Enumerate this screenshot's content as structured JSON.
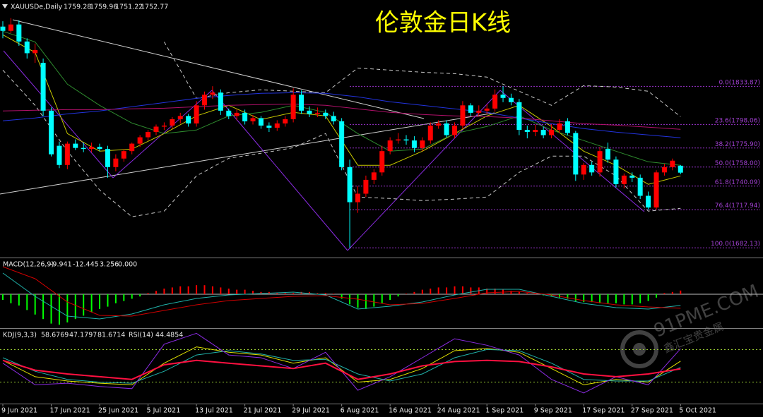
{
  "chart_data": {
    "type": "candlestick",
    "title": "伦敦金日K线",
    "symbol": "XAUUSDe,Daily",
    "categories": [
      "9 Jun 2021",
      null,
      null,
      null,
      null,
      null,
      "17 Jun 2021",
      null,
      null,
      null,
      null,
      null,
      "25 Jun 2021",
      null,
      null,
      null,
      null,
      null,
      "5 Jul 2021",
      null,
      null,
      null,
      null,
      null,
      "13 Jul 2021",
      null,
      null,
      null,
      null,
      null,
      "21 Jul 2021",
      null,
      null,
      null,
      null,
      null,
      "29 Jul 2021",
      null,
      null,
      null,
      null,
      null,
      "6 Aug 2021",
      null,
      null,
      null,
      null,
      null,
      "16 Aug 2021",
      null,
      null,
      null,
      null,
      null,
      "24 Aug 2021",
      null,
      null,
      null,
      null,
      null,
      "1 Sep 2021",
      null,
      null,
      null,
      null,
      null,
      "9 Sep 2021",
      null,
      null,
      null,
      null,
      null,
      "17 Sep 2021",
      null,
      null,
      null,
      null,
      null,
      "27 Sep 2021",
      null,
      null,
      null,
      null,
      null,
      "5 Oct 2021"
    ],
    "open": [
      1890,
      1886,
      1892,
      1876,
      1865,
      1856,
      1811,
      1778,
      1760,
      1780,
      1776,
      1775,
      1777,
      1775,
      1758,
      1766,
      1773,
      1780,
      1786,
      1791,
      1796,
      1797,
      1803,
      1806,
      1799,
      1816,
      1826,
      1828,
      1811,
      1806,
      1809,
      1801,
      1804,
      1797,
      1795,
      1799,
      1803,
      1826,
      1811,
      1808,
      1809,
      1806,
      1801,
      1758,
      1725,
      1733,
      1746,
      1753,
      1773,
      1783,
      1784,
      1783,
      1776,
      1783,
      1797,
      1799,
      1788,
      1797,
      1816,
      1809,
      1811,
      1813,
      1826,
      1823,
      1819,
      1793,
      1791,
      1793,
      1788,
      1793,
      1801,
      1790,
      1751,
      1760,
      1753,
      1775,
      1765,
      1742,
      1750,
      1748,
      1731,
      1720,
      1753,
      1758,
      1759.28
    ],
    "high": [
      1895,
      1898,
      1896,
      1879,
      1874,
      1860,
      1814,
      1782,
      1782,
      1784,
      1781,
      1781,
      1780,
      1778,
      1770,
      1775,
      1781,
      1788,
      1793,
      1798,
      1800,
      1805,
      1809,
      1808,
      1820,
      1829,
      1834,
      1831,
      1813,
      1812,
      1812,
      1807,
      1806,
      1800,
      1802,
      1806,
      1832,
      1830,
      1815,
      1814,
      1812,
      1810,
      1804,
      1765,
      1740,
      1750,
      1756,
      1778,
      1786,
      1790,
      1788,
      1787,
      1786,
      1800,
      1802,
      1802,
      1800,
      1820,
      1818,
      1816,
      1817,
      1831,
      1833.87,
      1827,
      1822,
      1797,
      1798,
      1796,
      1798,
      1803,
      1804,
      1792,
      1762,
      1763,
      1777,
      1781,
      1768,
      1752,
      1753,
      1751,
      1735,
      1755,
      1761,
      1766,
      1759.96
    ],
    "low": [
      1879,
      1884,
      1872,
      1860,
      1856,
      1806,
      1768,
      1757,
      1756,
      1774,
      1772,
      1772,
      1773,
      1748,
      1754,
      1763,
      1770,
      1777,
      1783,
      1788,
      1793,
      1794,
      1799,
      1796,
      1796,
      1812,
      1822,
      1807,
      1803,
      1802,
      1798,
      1798,
      1794,
      1791,
      1792,
      1796,
      1800,
      1808,
      1805,
      1805,
      1803,
      1798,
      1755,
      1682.13,
      1715,
      1730,
      1742,
      1750,
      1770,
      1780,
      1779,
      1772,
      1773,
      1780,
      1794,
      1786,
      1785,
      1794,
      1806,
      1806,
      1808,
      1810,
      1819,
      1816,
      1788,
      1785,
      1787,
      1785,
      1785,
      1790,
      1788,
      1745,
      1746,
      1750,
      1749,
      1762,
      1739,
      1738,
      1744,
      1728,
      1718,
      1718,
      1750,
      1755,
      1751.22
    ],
    "close": [
      1886,
      1892,
      1876,
      1865,
      1868,
      1811,
      1770,
      1760,
      1780,
      1776,
      1775,
      1777,
      1775,
      1758,
      1766,
      1773,
      1780,
      1786,
      1791,
      1796,
      1797,
      1803,
      1806,
      1799,
      1816,
      1826,
      1828,
      1811,
      1806,
      1809,
      1801,
      1804,
      1797,
      1795,
      1799,
      1803,
      1826,
      1811,
      1808,
      1809,
      1806,
      1801,
      1758,
      1725,
      1733,
      1746,
      1753,
      1773,
      1783,
      1784,
      1783,
      1776,
      1783,
      1797,
      1799,
      1788,
      1797,
      1816,
      1809,
      1811,
      1813,
      1826,
      1823,
      1819,
      1793,
      1791,
      1793,
      1788,
      1793,
      1799,
      1790,
      1751,
      1760,
      1753,
      1773,
      1765,
      1742,
      1750,
      1748,
      1731,
      1720,
      1753,
      1758,
      1764,
      1752.77
    ],
    "up_color": "#ff0000",
    "down_color": "#00ffff",
    "ylim": [
      1673,
      1915
    ],
    "fib_levels": [
      {
        "value": 1833.87,
        "label": "0.0(1833.87)"
      },
      {
        "value": 1798.06,
        "label": "23.6(1798.06)"
      },
      {
        "value": 1775.9,
        "label": "38.2(1775.90)"
      },
      {
        "value": 1758,
        "label": "50.0(1758.00)"
      },
      {
        "value": 1740.09,
        "label": "61.8(1740.09)"
      },
      {
        "value": 1717.94,
        "label": "76.4(1717.94)"
      },
      {
        "value": 1682.13,
        "label": "100.0(1682.13)"
      }
    ],
    "fib_color": "#9932cc",
    "overlays": {
      "x": [
        0,
        4,
        8,
        12,
        16,
        20,
        24,
        28,
        32,
        36,
        40,
        44,
        48,
        52,
        56,
        60,
        64,
        68,
        72,
        76,
        80,
        84
      ],
      "series": [
        {
          "color": "#c8c8c8",
          "dashed": true,
          "values": [
            null,
            null,
            null,
            null,
            null,
            1875.6,
            1822.6,
            1827.9,
            1830.6,
            1829.3,
            1827.9,
            1851.1,
            1849.1,
            1847.1,
            1845.8,
            1842.5,
            1829.3,
            1816,
            1834.5,
            1833.2,
            1829.3,
            1805.4
          ]
        },
        {
          "color": "#c8c8c8",
          "dashed": true,
          "values": [
            1849.1,
            1816,
            1772.9,
            1736.5,
            1711.3,
            1716.6,
            1749.7,
            1766.3,
            1770.9,
            1776.2,
            1789.5,
            1729.8,
            1728.5,
            1726.5,
            1727.9,
            1729.8,
            1753,
            1768.3,
            1768.3,
            1749.7,
            1716.6,
            1719.2
          ]
        },
        {
          "color": "#c8c800",
          "dashed": false,
          "values": [
            1882.3,
            1865.7,
            1789.5,
            1772.9,
            1774.9,
            1789.5,
            1806.1,
            1816,
            1802.7,
            1809.4,
            1806.1,
            1759.7,
            1759.7,
            1772.9,
            1789.5,
            1806.1,
            1816,
            1796.1,
            1772.9,
            1759.7,
            1741.8,
            1749.7
          ]
        },
        {
          "color": "#2e8b2e",
          "dashed": false,
          "values": [
            1885.6,
            1875.6,
            1835.9,
            1816,
            1799.4,
            1789.5,
            1792.8,
            1806.1,
            1809.4,
            1816,
            1809.4,
            1789.5,
            1772.9,
            1774.9,
            1789.5,
            1796.1,
            1806.1,
            1792.8,
            1782.9,
            1772.9,
            1763,
            1759.7
          ]
        },
        {
          "color": "#2233dd",
          "dashed": false,
          "values": [
            1801.4,
            1804.1,
            1808,
            1810.7,
            1814.7,
            1818.6,
            1822.6,
            1825.3,
            1827.3,
            1827.9,
            1827.3,
            1824,
            1819.3,
            1816,
            1812.7,
            1809.4,
            1804.1,
            1798.8,
            1794.1,
            1790.8,
            1788.2,
            1785.5
          ]
        },
        {
          "color": "#b0106a",
          "dashed": false,
          "values": [
            1810.7,
            1811.4,
            1812,
            1812,
            1812.7,
            1813.3,
            1814.7,
            1816,
            1816.7,
            1817.3,
            1816,
            1812.7,
            1809.4,
            1807.4,
            1806.1,
            1805.4,
            1804.1,
            1801.4,
            1798.8,
            1797.4,
            1795.5,
            1793.5
          ]
        }
      ]
    },
    "macd": {
      "title": "MACD(12,26,9)",
      "ylim": [
        -28.75,
        31.25
      ],
      "histogram": {
        "up_color": "#ff0000",
        "down_color": "#00ff00",
        "values": [
          -5,
          -8,
          -10,
          -14,
          -18,
          -22,
          -26,
          -27,
          -25,
          -22,
          -19,
          -16,
          -13,
          -11,
          -8,
          -6,
          -4,
          -2,
          1,
          3,
          5,
          6,
          7,
          7,
          8,
          8,
          7,
          6,
          5,
          4,
          4,
          3,
          2,
          2,
          1,
          1,
          1,
          2,
          2,
          1,
          1,
          0.5,
          -4,
          -9,
          -12,
          -13,
          -11,
          -8,
          -5,
          -2,
          0.5,
          2,
          4,
          5,
          6,
          6,
          7,
          7,
          6,
          6,
          5,
          5,
          4,
          3,
          2,
          1,
          0.5,
          -1,
          -2,
          -3,
          -4,
          -6,
          -7,
          -7,
          -8,
          -8,
          -8,
          -9,
          -9,
          -8,
          -6,
          -3,
          1,
          2,
          3.256
        ]
      },
      "lines": [
        {
          "color": "#20b2aa",
          "values": [
            18.75,
            -1.88,
            -19.4,
            -21.9,
            -17.5,
            -9.4,
            -3.75,
            -0.63,
            0.63,
            1.88,
            -0.63,
            -13.1,
            -10.6,
            -6.9,
            -0.63,
            4.4,
            4.4,
            -1.9,
            -8.1,
            -11.9,
            -13.1,
            -9.941
          ]
        },
        {
          "color": "#d00000",
          "values": [
            24.4,
            13.75,
            -6.9,
            -18.75,
            -19.4,
            -14.4,
            -9.4,
            -5.6,
            -3.75,
            -1.9,
            -1.25,
            -4.4,
            -9.4,
            -8.1,
            -3.75,
            1.25,
            2.5,
            -0.63,
            -5.6,
            -9.4,
            -11.25,
            -12.445
          ]
        }
      ],
      "buffer": {
        "value": 0,
        "label": "0.000"
      }
    },
    "kdj": {
      "title": "KDJ(9,3,3)",
      "ylim": [
        -17,
        117
      ],
      "levels": [
        20,
        80
      ],
      "level_color": "#9acd32",
      "lines": [
        {
          "color": "#e0e000",
          "values": [
            60,
            30,
            22,
            18,
            15,
            55,
            85,
            75,
            70,
            55,
            65,
            20,
            25,
            45,
            78,
            82,
            75,
            45,
            15,
            25,
            20,
            58.6769
          ]
        },
        {
          "color": "#20b2aa",
          "values": [
            65,
            40,
            25,
            20,
            18,
            40,
            70,
            78,
            72,
            60,
            62,
            35,
            22,
            35,
            65,
            80,
            78,
            55,
            25,
            22,
            22,
            47.1797
          ]
        },
        {
          "color": "#8a2be2",
          "values": [
            55,
            15,
            18,
            12,
            8,
            90,
            110,
            70,
            65,
            45,
            75,
            5,
            30,
            65,
            100,
            88,
            70,
            25,
            0,
            30,
            15,
            81.6714
          ]
        }
      ],
      "rsi": {
        "title": "RSI(14)",
        "color": "#ff1040",
        "values": [
          60,
          42,
          35,
          30,
          25,
          52,
          60,
          55,
          50,
          45,
          55,
          25,
          35,
          50,
          58,
          60,
          58,
          48,
          35,
          30,
          35,
          44.4854
        ]
      }
    },
    "watermark": {
      "site": "91PME.COM",
      "brand": "鑫汇宝贵金属"
    }
  }
}
